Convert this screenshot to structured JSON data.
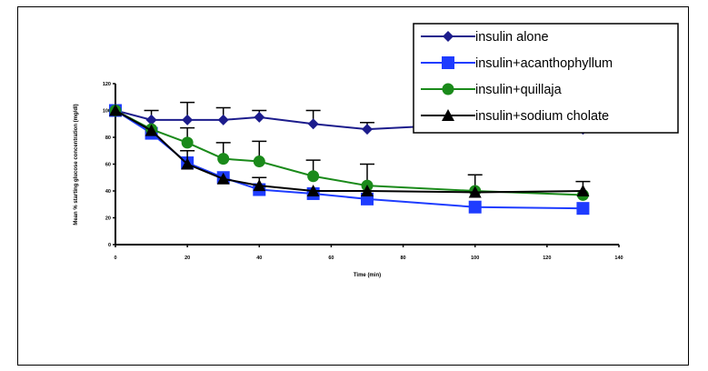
{
  "chart_data": {
    "type": "line",
    "title": "",
    "xlabel": "Time (min)",
    "ylabel": "Mean % starting glucose concentration (mg/dl)",
    "xlim": [
      0,
      140
    ],
    "ylim": [
      0,
      120
    ],
    "x_ticks": [
      0,
      20,
      40,
      60,
      80,
      100,
      120,
      140
    ],
    "y_ticks": [
      0,
      20,
      40,
      60,
      80,
      100,
      120
    ],
    "grid": false,
    "legend_position": "top-right",
    "series": [
      {
        "name": "insulin alone",
        "color": "#1c1c8c",
        "marker": "diamond",
        "x": [
          0,
          10,
          20,
          30,
          40,
          55,
          70,
          100,
          130
        ],
        "y": [
          100,
          93,
          93,
          93,
          95,
          90,
          86,
          90,
          86
        ],
        "error": [
          0,
          7,
          13,
          9,
          5,
          10,
          5,
          0,
          0
        ]
      },
      {
        "name": "insulin+acanthophyllum",
        "color": "#1e3cff",
        "marker": "square",
        "x": [
          0,
          10,
          20,
          30,
          40,
          55,
          70,
          100,
          130
        ],
        "y": [
          100,
          83,
          61,
          50,
          41,
          38,
          34,
          28,
          27
        ],
        "error": [
          0,
          0,
          0,
          0,
          0,
          0,
          0,
          0,
          0
        ]
      },
      {
        "name": "insulin+quillaja",
        "color": "#1a8a1a",
        "marker": "circle",
        "x": [
          0,
          10,
          20,
          30,
          40,
          55,
          70,
          100,
          130
        ],
        "y": [
          100,
          86,
          76,
          64,
          62,
          51,
          44,
          40,
          37
        ],
        "error": [
          0,
          0,
          11,
          12,
          15,
          12,
          16,
          12,
          0
        ]
      },
      {
        "name": "insulin+sodium cholate",
        "color": "#000000",
        "marker": "triangle",
        "x": [
          0,
          10,
          20,
          30,
          40,
          55,
          70,
          100,
          130
        ],
        "y": [
          100,
          85,
          60,
          49,
          44,
          40,
          40,
          39,
          40
        ],
        "error": [
          0,
          0,
          10,
          0,
          6,
          0,
          0,
          0,
          7
        ]
      }
    ]
  }
}
